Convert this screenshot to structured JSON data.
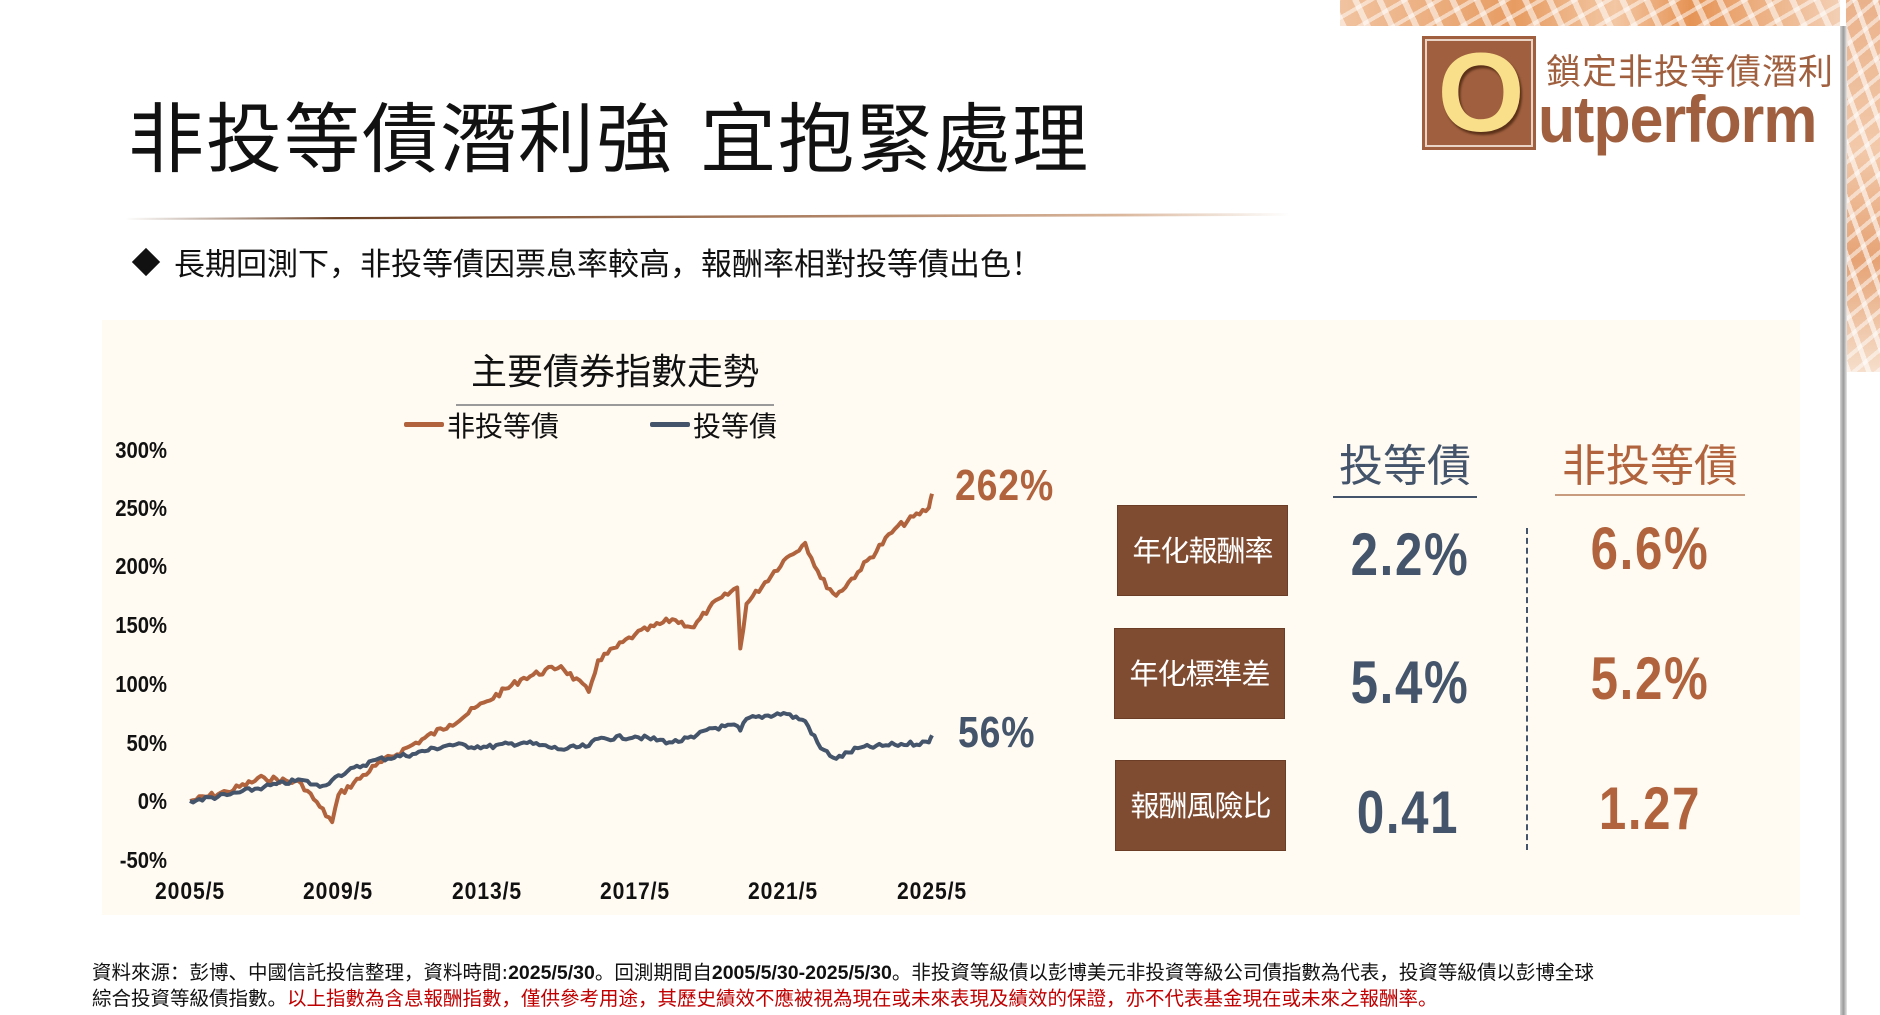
{
  "slide": {
    "title": "非投等債潛利強  宜抱緊處理",
    "bullet": "長期回測下，非投等債因票息率較高，報酬率相對投等債出色！",
    "colors": {
      "high_yield": "#b0633c",
      "investment_grade": "#44546a",
      "metric_box": "#7f4b31",
      "panel_bg": "#fffbf3",
      "disclaimer_red": "#c00000"
    }
  },
  "logo": {
    "letter": "O",
    "word": "utperform",
    "subtitle": "鎖定非投等債潛利"
  },
  "chart_data": {
    "type": "line",
    "title": "主要債券指數走勢",
    "xlabel": "",
    "ylabel": "",
    "ylim": [
      -0.5,
      3.0
    ],
    "y_ticks": [
      "300%",
      "250%",
      "200%",
      "150%",
      "100%",
      "50%",
      "0%",
      "-50%"
    ],
    "x_ticks": [
      "2005/5",
      "2009/5",
      "2013/5",
      "2017/5",
      "2021/5",
      "2025/5"
    ],
    "legend_position": "top",
    "grid": false,
    "x": [
      "2005/5",
      "2006/5",
      "2007/5",
      "2008/5",
      "2008/11",
      "2009/3",
      "2009/5",
      "2010/5",
      "2011/5",
      "2012/5",
      "2013/5",
      "2014/5",
      "2015/5",
      "2016/2",
      "2016/5",
      "2017/5",
      "2018/5",
      "2018/12",
      "2019/5",
      "2020/2",
      "2020/3",
      "2020/5",
      "2021/5",
      "2021/12",
      "2022/5",
      "2022/10",
      "2023/5",
      "2024/5",
      "2025/4",
      "2025/5"
    ],
    "series": [
      {
        "name": "非投等債",
        "color": "#b0633c",
        "values": [
          0.0,
          0.08,
          0.2,
          0.15,
          -0.05,
          -0.18,
          0.05,
          0.3,
          0.48,
          0.65,
          0.85,
          1.05,
          1.15,
          0.93,
          1.2,
          1.42,
          1.55,
          1.48,
          1.65,
          1.82,
          1.3,
          1.68,
          2.05,
          2.2,
          1.9,
          1.75,
          1.95,
          2.32,
          2.5,
          2.62
        ],
        "end_label": "262%"
      },
      {
        "name": "投等債",
        "color": "#44546a",
        "values": [
          0.0,
          0.05,
          0.12,
          0.18,
          0.12,
          0.18,
          0.22,
          0.35,
          0.4,
          0.48,
          0.46,
          0.5,
          0.44,
          0.47,
          0.53,
          0.55,
          0.5,
          0.54,
          0.62,
          0.64,
          0.6,
          0.7,
          0.75,
          0.68,
          0.45,
          0.36,
          0.45,
          0.48,
          0.5,
          0.56
        ],
        "end_label": "56%"
      }
    ]
  },
  "metrics": {
    "headers": [
      "投等債",
      "非投等債"
    ],
    "rows": [
      {
        "label": "年化報酬率",
        "investment_grade": "2.2%",
        "high_yield": "6.6%"
      },
      {
        "label": "年化標準差",
        "investment_grade": "5.4%",
        "high_yield": "5.2%"
      },
      {
        "label": "報酬風險比",
        "investment_grade": "0.41",
        "high_yield": "1.27"
      }
    ]
  },
  "footer": {
    "line1_a": "資料來源：彭博、中國信託投信整理，資料時間:",
    "line1_date": "2025/5/30",
    "line1_b": "。回測期間自",
    "line1_period": "2005/5/30-2025/5/30",
    "line1_c": "。非投資等級債以彭博美元非投資等級公司債指數為代表，投資等級債以彭博全球",
    "line2_a": "綜合投資等級債指數。",
    "line2_red": "以上指數為含息報酬指數，僅供參考用途，其歷史績效不應被視為現在或未來表現及績效的保證，亦不代表基金現在或未來之報酬率。"
  }
}
